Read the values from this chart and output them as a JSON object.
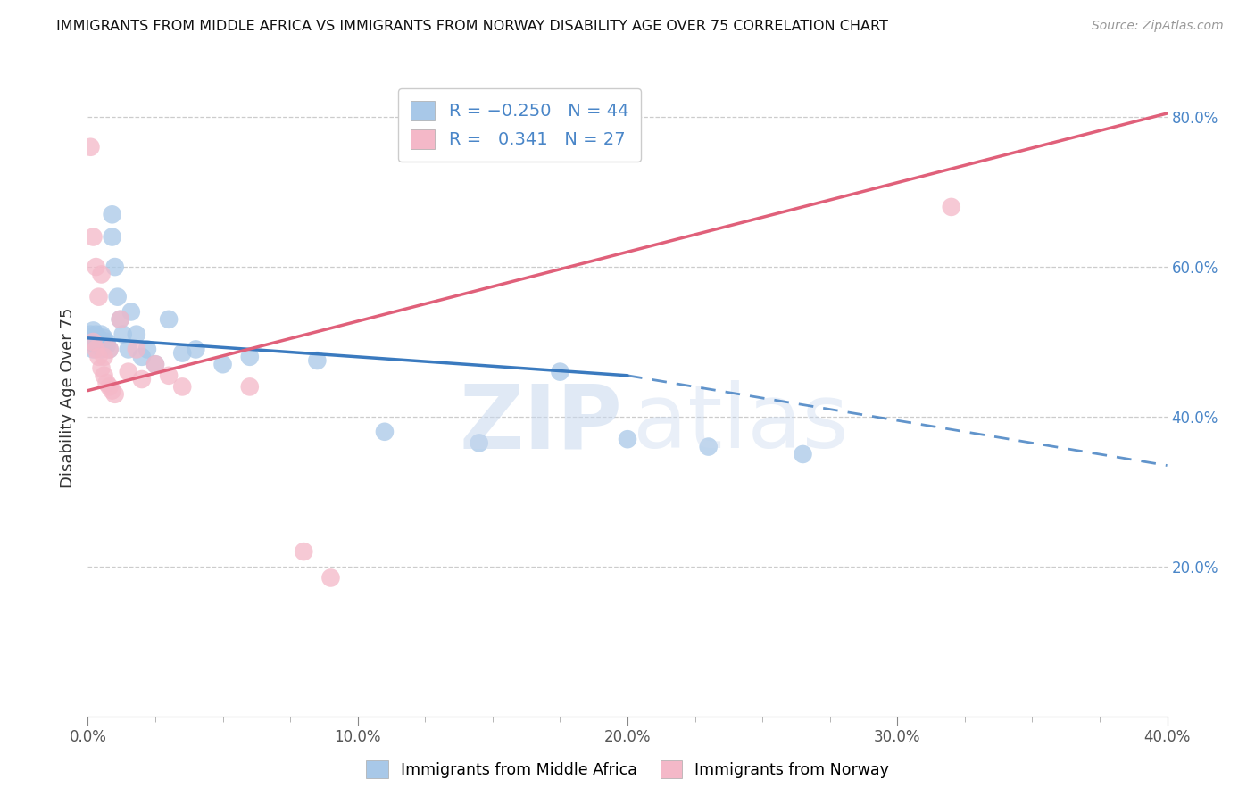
{
  "title": "IMMIGRANTS FROM MIDDLE AFRICA VS IMMIGRANTS FROM NORWAY DISABILITY AGE OVER 75 CORRELATION CHART",
  "source": "Source: ZipAtlas.com",
  "ylabel": "Disability Age Over 75",
  "legend_label1": "Immigrants from Middle Africa",
  "legend_label2": "Immigrants from Norway",
  "R1": -0.25,
  "N1": 44,
  "R2": 0.341,
  "N2": 27,
  "color1": "#a8c8e8",
  "color2": "#f4b8c8",
  "line_color1": "#3a7abf",
  "line_color2": "#e0607a",
  "xmin": 0.0,
  "xmax": 0.4,
  "ymin": 0.0,
  "ymax": 0.85,
  "right_yticks": [
    0.2,
    0.4,
    0.6,
    0.8
  ],
  "right_yticklabels": [
    "20.0%",
    "40.0%",
    "60.0%",
    "80.0%"
  ],
  "xticks": [
    0.0,
    0.1,
    0.2,
    0.3,
    0.4
  ],
  "xticklabels": [
    "0.0%",
    "10.0%",
    "20.0%",
    "30.0%",
    "40.0%"
  ],
  "blue_line_x0": 0.0,
  "blue_line_y0": 0.505,
  "blue_line_x1_solid": 0.2,
  "blue_line_y1_solid": 0.455,
  "blue_line_x1_dash": 0.4,
  "blue_line_y1_dash": 0.335,
  "pink_line_x0": 0.0,
  "pink_line_y0": 0.435,
  "pink_line_x1": 0.4,
  "pink_line_y1": 0.805,
  "blue_pts_x": [
    0.001,
    0.001,
    0.002,
    0.002,
    0.002,
    0.003,
    0.003,
    0.003,
    0.003,
    0.004,
    0.004,
    0.004,
    0.005,
    0.005,
    0.005,
    0.006,
    0.006,
    0.007,
    0.007,
    0.008,
    0.009,
    0.009,
    0.01,
    0.011,
    0.012,
    0.013,
    0.015,
    0.016,
    0.018,
    0.02,
    0.022,
    0.025,
    0.03,
    0.035,
    0.04,
    0.05,
    0.06,
    0.085,
    0.11,
    0.145,
    0.175,
    0.2,
    0.23,
    0.265
  ],
  "blue_pts_y": [
    0.5,
    0.51,
    0.49,
    0.505,
    0.515,
    0.5,
    0.495,
    0.505,
    0.51,
    0.495,
    0.5,
    0.505,
    0.49,
    0.5,
    0.51,
    0.495,
    0.505,
    0.5,
    0.495,
    0.49,
    0.64,
    0.67,
    0.6,
    0.56,
    0.53,
    0.51,
    0.49,
    0.54,
    0.51,
    0.48,
    0.49,
    0.47,
    0.53,
    0.485,
    0.49,
    0.47,
    0.48,
    0.475,
    0.38,
    0.365,
    0.46,
    0.37,
    0.36,
    0.35
  ],
  "pink_pts_x": [
    0.001,
    0.002,
    0.002,
    0.003,
    0.003,
    0.004,
    0.004,
    0.005,
    0.005,
    0.006,
    0.006,
    0.007,
    0.008,
    0.008,
    0.009,
    0.01,
    0.012,
    0.015,
    0.018,
    0.02,
    0.025,
    0.03,
    0.035,
    0.06,
    0.08,
    0.09,
    0.32
  ],
  "pink_pts_y": [
    0.76,
    0.5,
    0.64,
    0.49,
    0.6,
    0.48,
    0.56,
    0.465,
    0.59,
    0.455,
    0.48,
    0.445,
    0.44,
    0.49,
    0.435,
    0.43,
    0.53,
    0.46,
    0.49,
    0.45,
    0.47,
    0.455,
    0.44,
    0.44,
    0.22,
    0.185,
    0.68
  ]
}
